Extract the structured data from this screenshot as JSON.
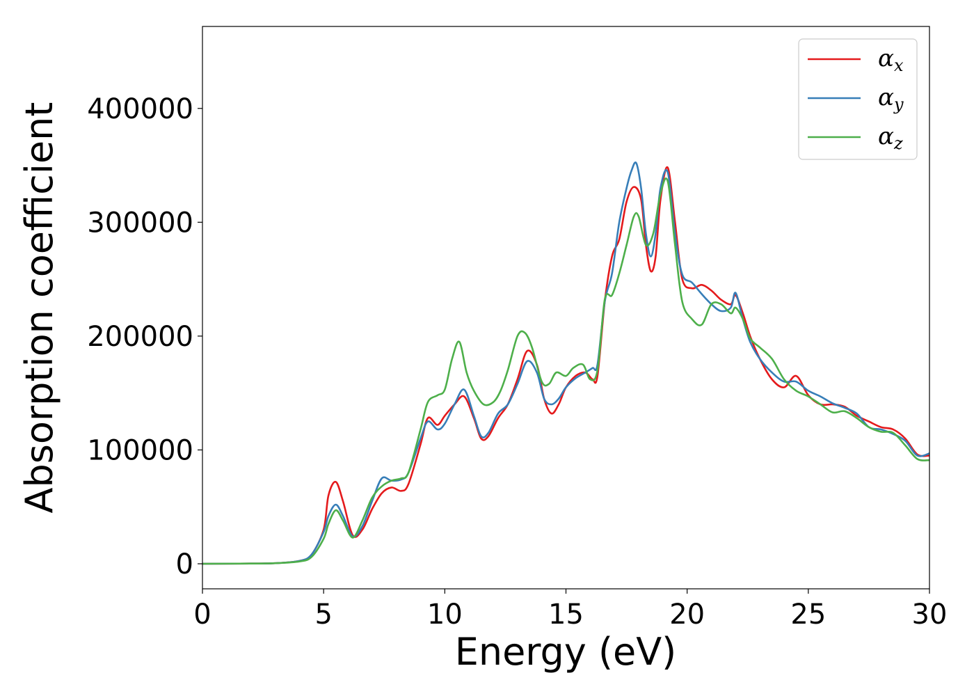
{
  "chart_data": {
    "type": "line",
    "title": "",
    "xlabel": "Energy (eV)",
    "ylabel": "Absorption coefficient",
    "xlim": [
      0,
      30
    ],
    "ylim": [
      -22000,
      472000
    ],
    "xticks": [
      0,
      5,
      10,
      15,
      20,
      25,
      30
    ],
    "yticks": [
      0,
      100000,
      200000,
      300000,
      400000
    ],
    "grid": false,
    "legend": "top-right",
    "series": [
      {
        "name": "α",
        "subscript": "x",
        "color": "#e41a1c",
        "x": [
          0,
          2,
          3,
          4,
          4.5,
          5,
          5.2,
          5.5,
          5.8,
          6.2,
          6.6,
          7,
          7.4,
          7.8,
          8.2,
          8.5,
          9,
          9.3,
          9.7,
          10,
          10.4,
          10.8,
          11.2,
          11.5,
          11.8,
          12.2,
          12.6,
          13,
          13.4,
          13.8,
          14.1,
          14.4,
          14.7,
          15,
          15.4,
          15.8,
          16.1,
          16.3,
          16.6,
          16.9,
          17.2,
          17.5,
          17.8,
          18.1,
          18.3,
          18.5,
          18.7,
          18.9,
          19.2,
          19.5,
          19.8,
          20.2,
          20.6,
          21,
          21.4,
          21.8,
          22,
          22.3,
          22.6,
          23,
          23.5,
          24,
          24.5,
          25,
          25.5,
          26,
          26.5,
          27,
          27.5,
          28,
          28.5,
          29,
          29.5,
          30
        ],
        "y": [
          0,
          200,
          500,
          2500,
          8000,
          30000,
          60000,
          72000,
          55000,
          25000,
          30000,
          48000,
          62000,
          67000,
          64000,
          70000,
          105000,
          128000,
          122000,
          130000,
          140000,
          147000,
          128000,
          110000,
          112000,
          128000,
          140000,
          162000,
          187000,
          175000,
          145000,
          132000,
          140000,
          155000,
          165000,
          168000,
          162000,
          165000,
          230000,
          270000,
          285000,
          318000,
          331000,
          320000,
          280000,
          257000,
          270000,
          320000,
          348000,
          300000,
          250000,
          242000,
          245000,
          240000,
          232000,
          228000,
          236000,
          220000,
          200000,
          180000,
          162000,
          155000,
          165000,
          148000,
          140000,
          140000,
          138000,
          130000,
          125000,
          120000,
          118000,
          110000,
          96000,
          95000
        ]
      },
      {
        "name": "α",
        "subscript": "y",
        "color": "#377eb8",
        "x": [
          0,
          2,
          3,
          4,
          4.5,
          5,
          5.2,
          5.5,
          5.8,
          6.2,
          6.6,
          7,
          7.4,
          7.8,
          8.2,
          8.5,
          9,
          9.3,
          9.7,
          10,
          10.4,
          10.8,
          11.2,
          11.5,
          11.8,
          12.2,
          12.6,
          13,
          13.4,
          13.8,
          14.1,
          14.4,
          14.7,
          15,
          15.4,
          15.8,
          16.1,
          16.3,
          16.6,
          16.9,
          17.2,
          17.5,
          17.7,
          17.9,
          18.1,
          18.3,
          18.5,
          18.7,
          18.9,
          19.2,
          19.5,
          19.8,
          20.2,
          20.6,
          21,
          21.4,
          21.8,
          22,
          22.3,
          22.6,
          23,
          23.5,
          24,
          24.5,
          25,
          25.5,
          26,
          26.5,
          27,
          27.5,
          28,
          28.5,
          29,
          29.5,
          30
        ],
        "y": [
          0,
          200,
          500,
          2500,
          8000,
          28000,
          42000,
          52000,
          42000,
          24000,
          33000,
          55000,
          75000,
          73000,
          74000,
          80000,
          110000,
          125000,
          118000,
          123000,
          140000,
          153000,
          130000,
          112000,
          115000,
          132000,
          140000,
          158000,
          178000,
          168000,
          145000,
          140000,
          145000,
          155000,
          163000,
          168000,
          172000,
          175000,
          230000,
          255000,
          300000,
          330000,
          345000,
          352000,
          330000,
          290000,
          270000,
          290000,
          330000,
          344000,
          290000,
          254000,
          247000,
          237000,
          228000,
          222000,
          225000,
          238000,
          215000,
          195000,
          180000,
          168000,
          160000,
          160000,
          152000,
          147000,
          141000,
          137000,
          132000,
          120000,
          118000,
          114000,
          108000,
          95000,
          97000
        ]
      },
      {
        "name": "α",
        "subscript": "z",
        "color": "#4daf4a",
        "x": [
          0,
          2,
          3,
          4,
          4.5,
          5,
          5.2,
          5.5,
          5.8,
          6.2,
          6.6,
          7,
          7.4,
          7.8,
          8.2,
          8.5,
          9,
          9.3,
          9.7,
          10,
          10.3,
          10.6,
          10.9,
          11.2,
          11.6,
          12,
          12.3,
          12.6,
          13,
          13.3,
          13.6,
          14,
          14.3,
          14.6,
          15,
          15.3,
          15.7,
          16,
          16.3,
          16.6,
          16.9,
          17.2,
          17.5,
          17.8,
          18,
          18.3,
          18.6,
          18.9,
          19.2,
          19.5,
          19.8,
          20.2,
          20.6,
          21,
          21.4,
          21.8,
          22,
          22.3,
          22.6,
          23,
          23.5,
          24,
          24.5,
          25,
          25.5,
          26,
          26.5,
          27,
          27.5,
          28,
          28.5,
          29,
          29.5,
          30
        ],
        "y": [
          0,
          200,
          500,
          2000,
          6000,
          22000,
          35000,
          47000,
          38000,
          23000,
          38000,
          58000,
          68000,
          73000,
          75000,
          80000,
          118000,
          142000,
          148000,
          153000,
          180000,
          195000,
          168000,
          152000,
          140000,
          142000,
          152000,
          170000,
          200000,
          203000,
          190000,
          160000,
          158000,
          168000,
          165000,
          172000,
          175000,
          162000,
          170000,
          232000,
          236000,
          255000,
          280000,
          305000,
          305000,
          280000,
          290000,
          325000,
          336000,
          280000,
          230000,
          215000,
          210000,
          228000,
          228000,
          220000,
          225000,
          215000,
          198000,
          190000,
          180000,
          162000,
          152000,
          147000,
          140000,
          133000,
          134000,
          128000,
          120000,
          116000,
          115000,
          104000,
          92000,
          91000
        ]
      }
    ]
  }
}
